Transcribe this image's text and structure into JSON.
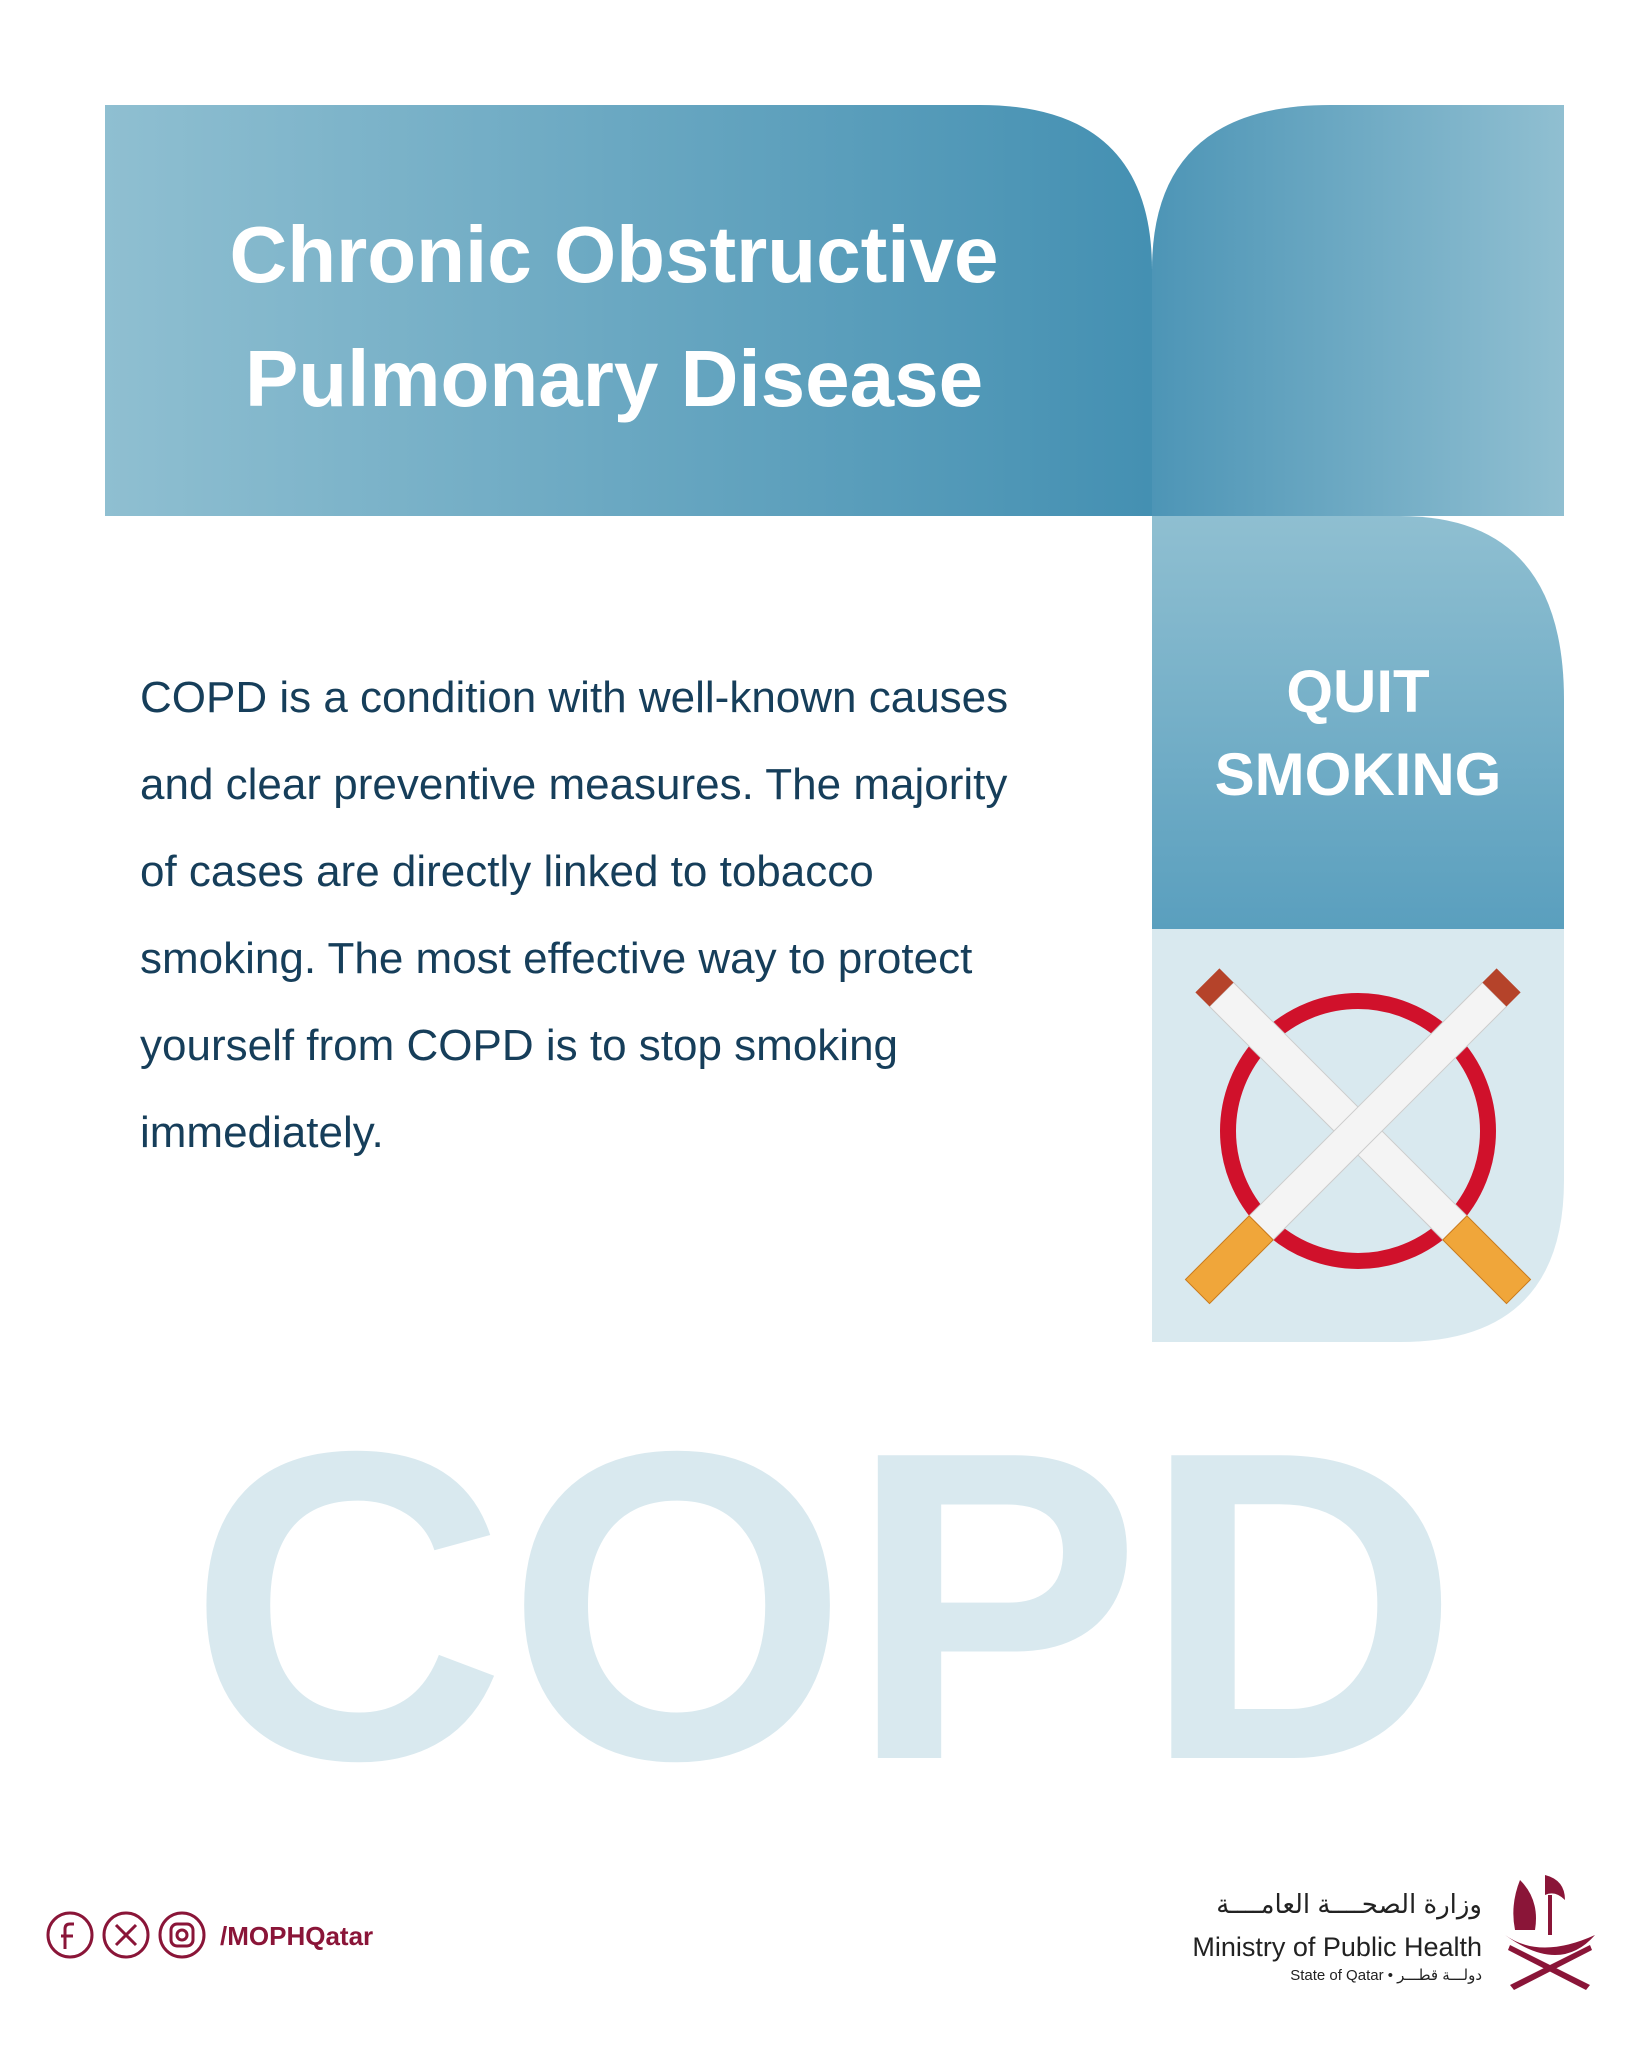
{
  "header": {
    "title_lines": [
      "Chronic Obstructive",
      "Pulmonary Disease"
    ]
  },
  "sidebar": {
    "lines": [
      "QUIT",
      "SMOKING"
    ]
  },
  "body": {
    "lines": [
      "COPD is a condition with well-known causes",
      "and clear preventive measures. The majority",
      "of cases are directly linked to tobacco",
      "smoking. The most effective way to protect",
      "yourself from COPD is to stop smoking",
      "immediately."
    ]
  },
  "watermark": "COPD",
  "footer": {
    "handle": "/MOPHQatar",
    "ministry_arabic": "وزارة الصحــــة العامــــة",
    "ministry_english": "Ministry of Public Health",
    "state": "State of Qatar • دولـــة قطـــر"
  }
}
